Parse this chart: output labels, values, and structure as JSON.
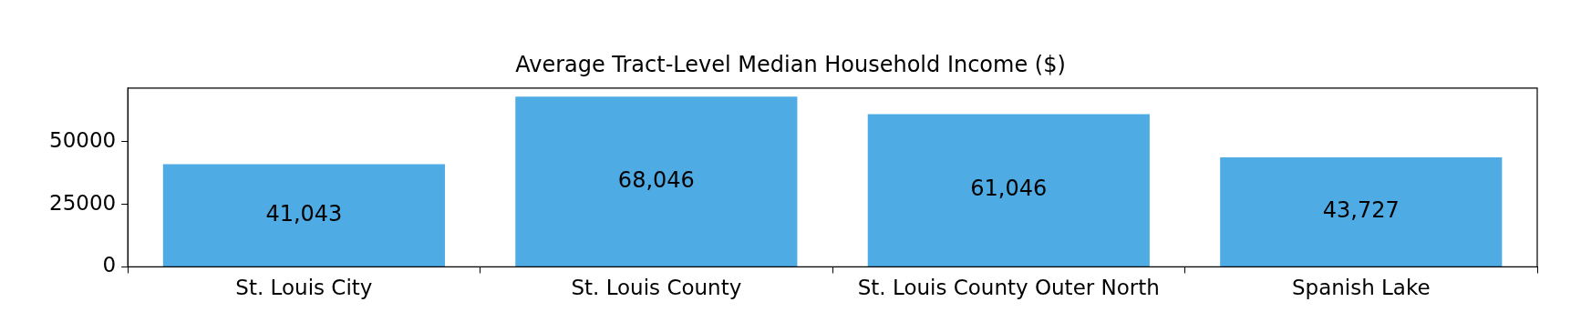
{
  "chart_data": {
    "type": "bar",
    "title": "Average Tract-Level Median Household Income ($)",
    "categories": [
      "St. Louis City",
      "St. Louis County",
      "St. Louis County Outer North",
      "Spanish Lake"
    ],
    "values": [
      41043,
      68046,
      61046,
      43727
    ],
    "value_labels": [
      "41,043",
      "68,046",
      "61,046",
      "43,727"
    ],
    "color": "#4fabe3",
    "ylim": [
      0,
      71448
    ],
    "yticks": [
      0,
      25000,
      50000
    ],
    "grid": false,
    "legend": false
  }
}
